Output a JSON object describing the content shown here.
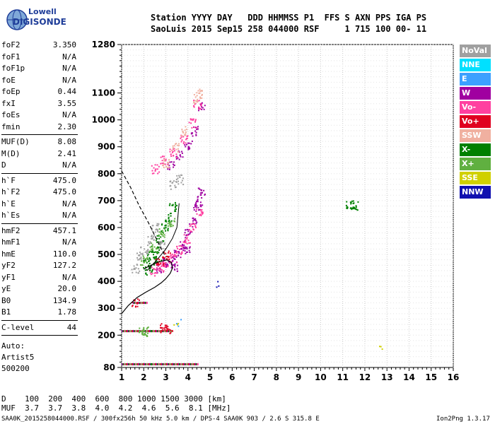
{
  "logo": {
    "line1": "Lowell",
    "line2": "DIGISONDE"
  },
  "header": {
    "line1": "Station YYYY DAY   DDD HHMMSS P1  FFS S AXN PPS IGA PS",
    "line2": "SaoLuis 2015 Sep15 258 044000 RSF     1 715 100 00- 11"
  },
  "params": [
    {
      "label": "foF2",
      "value": "3.350"
    },
    {
      "label": "foF1",
      "value": "N/A"
    },
    {
      "label": "foF1p",
      "value": "N/A"
    },
    {
      "label": "foE",
      "value": "N/A"
    },
    {
      "label": "foEp",
      "value": "0.44"
    },
    {
      "label": "fxI",
      "value": "3.55"
    },
    {
      "label": "foEs",
      "value": "N/A"
    },
    {
      "label": "fmin",
      "value": "2.30"
    },
    {
      "sep": true
    },
    {
      "label": "MUF(D)",
      "value": "8.08"
    },
    {
      "label": "M(D)",
      "value": "2.41"
    },
    {
      "label": "D",
      "value": "N/A"
    },
    {
      "sep": true
    },
    {
      "label": "h`F",
      "value": "475.0"
    },
    {
      "label": "h`F2",
      "value": "475.0"
    },
    {
      "label": "h`E",
      "value": "N/A"
    },
    {
      "label": "h`Es",
      "value": "N/A"
    },
    {
      "sep": true
    },
    {
      "label": "hmF2",
      "value": "457.1"
    },
    {
      "label": "hmF1",
      "value": "N/A"
    },
    {
      "label": "hmE",
      "value": "110.0"
    },
    {
      "label": "yF2",
      "value": "127.2"
    },
    {
      "label": "yF1",
      "value": "N/A"
    },
    {
      "label": "yE",
      "value": "20.0"
    },
    {
      "label": "B0",
      "value": "134.9"
    },
    {
      "label": "B1",
      "value": "1.78"
    },
    {
      "sep": true
    },
    {
      "label": "C-level",
      "value": "44"
    },
    {
      "sep": true
    }
  ],
  "auto": {
    "line1": "Auto:",
    "line2": "Artist5",
    "line3": "500200"
  },
  "legend": [
    {
      "label": "NoVal",
      "color": "#a0a0a0"
    },
    {
      "label": "NNE",
      "color": "#00e0ff"
    },
    {
      "label": "E",
      "color": "#3ca0ff"
    },
    {
      "label": "W",
      "color": "#a000a0"
    },
    {
      "label": "Vo-",
      "color": "#ff40a0"
    },
    {
      "label": "Vo+",
      "color": "#e00020"
    },
    {
      "label": "SSW",
      "color": "#f0b0a0"
    },
    {
      "label": "X-",
      "color": "#008000"
    },
    {
      "label": "X+",
      "color": "#60b040"
    },
    {
      "label": "SSE",
      "color": "#d0d000"
    },
    {
      "label": "NNW",
      "color": "#1010b0"
    }
  ],
  "bottom": {
    "d_line": "D    100  200  400  600  800 1000 1500 3000 [km]",
    "muf_line": "MUF  3.7  3.7  3.8  4.0  4.2  4.6  5.6  8.1 [MHz]"
  },
  "footer": {
    "left": "SAA0K_2015258044000.RSF / 300fx256h 50 kHz 5.0 km / DPS-4 SAA0K 903 / 2.6 S 315.8 E",
    "right": "Ion2Png 1.3.17"
  },
  "chart_data": {
    "type": "scatter",
    "title": "",
    "xlabel": "",
    "ylabel": "",
    "xlim": [
      1,
      16
    ],
    "ylim": [
      80,
      1280
    ],
    "x_ticks": [
      1,
      2,
      3,
      4,
      5,
      6,
      7,
      8,
      9,
      10,
      11,
      12,
      13,
      14,
      15,
      16
    ],
    "y_ticks": [
      80,
      200,
      300,
      400,
      500,
      600,
      700,
      800,
      900,
      1000,
      1100,
      1280
    ],
    "grid": true,
    "series": [
      {
        "name": "W",
        "color": "#a000a0",
        "points": [
          [
            2.7,
            450
          ],
          [
            3.0,
            470
          ],
          [
            3.3,
            480
          ],
          [
            3.5,
            500
          ],
          [
            3.8,
            540
          ],
          [
            4.0,
            580
          ],
          [
            4.2,
            620
          ],
          [
            4.4,
            680
          ],
          [
            4.6,
            740
          ],
          [
            3.2,
            830
          ],
          [
            3.6,
            870
          ],
          [
            4.0,
            910
          ],
          [
            4.3,
            960
          ],
          [
            4.6,
            1050
          ],
          [
            3.4,
            455
          ],
          [
            3.9,
            520
          ],
          [
            4.5,
            700
          ]
        ]
      },
      {
        "name": "Vo-",
        "color": "#ff40a0",
        "points": [
          [
            2.4,
            440
          ],
          [
            2.7,
            455
          ],
          [
            3.0,
            470
          ],
          [
            3.3,
            490
          ],
          [
            3.6,
            520
          ],
          [
            3.9,
            560
          ],
          [
            4.2,
            600
          ],
          [
            4.5,
            660
          ],
          [
            2.5,
            820
          ],
          [
            2.9,
            850
          ],
          [
            3.3,
            880
          ],
          [
            3.8,
            930
          ],
          [
            4.2,
            990
          ],
          [
            4.4,
            1060
          ]
        ]
      },
      {
        "name": "X-",
        "color": "#008000",
        "points": [
          [
            2.1,
            470
          ],
          [
            2.3,
            500
          ],
          [
            2.5,
            520
          ],
          [
            2.7,
            560
          ],
          [
            2.9,
            600
          ],
          [
            3.1,
            640
          ],
          [
            3.3,
            680
          ],
          [
            2.2,
            440
          ],
          [
            2.6,
            480
          ],
          [
            11.3,
            685
          ],
          [
            11.5,
            685
          ]
        ]
      },
      {
        "name": "X+",
        "color": "#60b040",
        "points": [
          [
            2.0,
            480
          ],
          [
            2.4,
            530
          ],
          [
            2.8,
            580
          ],
          [
            3.2,
            620
          ],
          [
            1.9,
            215
          ],
          [
            2.1,
            215
          ]
        ]
      },
      {
        "name": "NoVal",
        "color": "#a0a0a0",
        "points": [
          [
            1.8,
            500
          ],
          [
            2.0,
            520
          ],
          [
            2.3,
            560
          ],
          [
            2.5,
            600
          ],
          [
            2.8,
            540
          ],
          [
            1.6,
            450
          ],
          [
            3.3,
            760
          ],
          [
            3.6,
            780
          ]
        ]
      },
      {
        "name": "SSW",
        "color": "#f0b0a0",
        "points": [
          [
            3.0,
            840
          ],
          [
            3.4,
            900
          ],
          [
            3.8,
            960
          ],
          [
            4.4,
            1080
          ],
          [
            4.5,
            1100
          ]
        ]
      },
      {
        "name": "Vo+",
        "color": "#e00020",
        "points": [
          [
            2.9,
            230
          ],
          [
            3.1,
            225
          ],
          [
            2.7,
            480
          ],
          [
            3.0,
            500
          ],
          [
            1.6,
            320
          ]
        ]
      },
      {
        "name": "SSE",
        "color": "#d0d000",
        "points": [
          [
            3.4,
            240
          ],
          [
            12.6,
            160
          ]
        ]
      },
      {
        "name": "NNW",
        "color": "#1010b0",
        "points": [
          [
            5.3,
            390
          ]
        ]
      },
      {
        "name": "E",
        "color": "#3ca0ff",
        "points": [
          [
            3.5,
            250
          ]
        ]
      }
    ],
    "es_traces": [
      {
        "x0": 1.0,
        "x1": 4.4,
        "h": 92
      },
      {
        "x0": 1.0,
        "x1": 3.2,
        "h": 215
      },
      {
        "x0": 1.5,
        "x1": 2.1,
        "h": 320
      }
    ],
    "profile_solid": [
      [
        1.0,
        280
      ],
      [
        1.3,
        310
      ],
      [
        1.7,
        340
      ],
      [
        2.1,
        360
      ],
      [
        2.5,
        378
      ],
      [
        2.8,
        395
      ],
      [
        3.0,
        410
      ],
      [
        3.2,
        430
      ],
      [
        3.3,
        450
      ],
      [
        3.25,
        470
      ],
      [
        3.05,
        480
      ],
      [
        2.6,
        470
      ],
      [
        2.2,
        455
      ],
      [
        2.0,
        445
      ]
    ],
    "profile_dashed": [
      [
        1.0,
        810
      ],
      [
        1.4,
        750
      ],
      [
        1.8,
        680
      ],
      [
        2.2,
        620
      ],
      [
        2.5,
        570
      ],
      [
        2.8,
        520
      ],
      [
        3.0,
        490
      ]
    ],
    "trace_line": [
      [
        2.15,
        440
      ],
      [
        2.6,
        480
      ],
      [
        3.0,
        520
      ],
      [
        3.3,
        560
      ],
      [
        3.5,
        600
      ],
      [
        3.6,
        690
      ]
    ]
  }
}
